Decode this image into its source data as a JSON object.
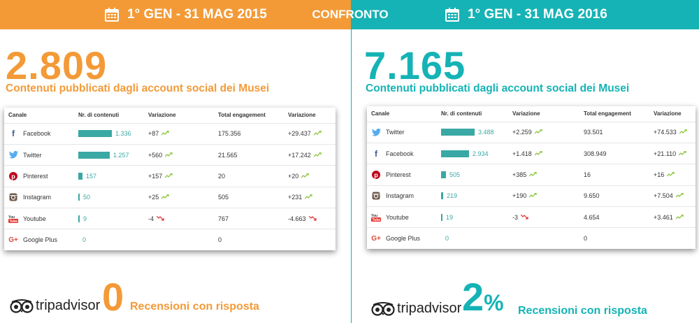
{
  "header": {
    "left_period": "1° GEN - 31 MAG 2015",
    "center": "CONFRONTO",
    "right_period": "1° GEN - 31 MAG 2016"
  },
  "left": {
    "total": "2.809",
    "subtitle": "Contenuti pubblicati dagli account social dei Musei",
    "columns": [
      "Canale",
      "Nr. di contenuti",
      "Variazione",
      "Total engagement",
      "Variazione"
    ],
    "rows": [
      {
        "channel": "Facebook",
        "icon": "facebook-icon",
        "contents": 1336,
        "contents_label": "1.336",
        "var1": "+87",
        "t1": "up",
        "engagement": "175.356",
        "var2": "+29.437",
        "t2": "up"
      },
      {
        "channel": "Twitter",
        "icon": "twitter-icon",
        "contents": 1257,
        "contents_label": "1.257",
        "var1": "+560",
        "t1": "up",
        "engagement": "21.565",
        "var2": "+17.242",
        "t2": "up"
      },
      {
        "channel": "Pinterest",
        "icon": "pinterest-icon",
        "contents": 157,
        "contents_label": "157",
        "var1": "+157",
        "t1": "up",
        "engagement": "20",
        "var2": "+20",
        "t2": "up"
      },
      {
        "channel": "Instagram",
        "icon": "instagram-icon",
        "contents": 50,
        "contents_label": "50",
        "var1": "+25",
        "t1": "up",
        "engagement": "505",
        "var2": "+231",
        "t2": "up"
      },
      {
        "channel": "Youtube",
        "icon": "youtube-icon",
        "contents": 9,
        "contents_label": "9",
        "var1": "-4",
        "t1": "down",
        "engagement": "767",
        "var2": "-4.663",
        "t2": "down"
      },
      {
        "channel": "Google Plus",
        "icon": "google-plus-icon",
        "contents": 0,
        "contents_label": "0",
        "var1": "",
        "t1": "",
        "engagement": "0",
        "var2": "",
        "t2": ""
      }
    ],
    "ta_value": "0",
    "ta_unit": "",
    "ta_label": "Recensioni con risposta"
  },
  "right": {
    "total": "7.165",
    "subtitle": "Contenuti pubblicati dagli account social dei Musei",
    "columns": [
      "Canale",
      "Nr. di contenuti",
      "Variazione",
      "Total engagement",
      "Variazione"
    ],
    "rows": [
      {
        "channel": "Twitter",
        "icon": "twitter-icon",
        "contents": 3488,
        "contents_label": "3.488",
        "var1": "+2.259",
        "t1": "up",
        "engagement": "93.501",
        "var2": "+74.533",
        "t2": "up"
      },
      {
        "channel": "Facebook",
        "icon": "facebook-icon",
        "contents": 2934,
        "contents_label": "2.934",
        "var1": "+1.418",
        "t1": "up",
        "engagement": "308.949",
        "var2": "+21.110",
        "t2": "up"
      },
      {
        "channel": "Pinterest",
        "icon": "pinterest-icon",
        "contents": 505,
        "contents_label": "505",
        "var1": "+385",
        "t1": "up",
        "engagement": "16",
        "var2": "+16",
        "t2": "up"
      },
      {
        "channel": "Instagram",
        "icon": "instagram-icon",
        "contents": 219,
        "contents_label": "219",
        "var1": "+190",
        "t1": "up",
        "engagement": "9.650",
        "var2": "+7.504",
        "t2": "up"
      },
      {
        "channel": "Youtube",
        "icon": "youtube-icon",
        "contents": 19,
        "contents_label": "19",
        "var1": "-3",
        "t1": "down",
        "engagement": "4.654",
        "var2": "+3.461",
        "t2": "up"
      },
      {
        "channel": "Google Plus",
        "icon": "google-plus-icon",
        "contents": 0,
        "contents_label": "0",
        "var1": "",
        "t1": "",
        "engagement": "0",
        "var2": "",
        "t2": ""
      }
    ],
    "ta_value": "2",
    "ta_unit": "%",
    "ta_label": "Recensioni con risposta"
  },
  "tripadvisor": "tripadvisor",
  "colors": {
    "orange": "#f39a37",
    "teal": "#15b3b5",
    "bar": "#3aa8a4",
    "up": "#8cc63f",
    "down": "#e23c3c"
  }
}
